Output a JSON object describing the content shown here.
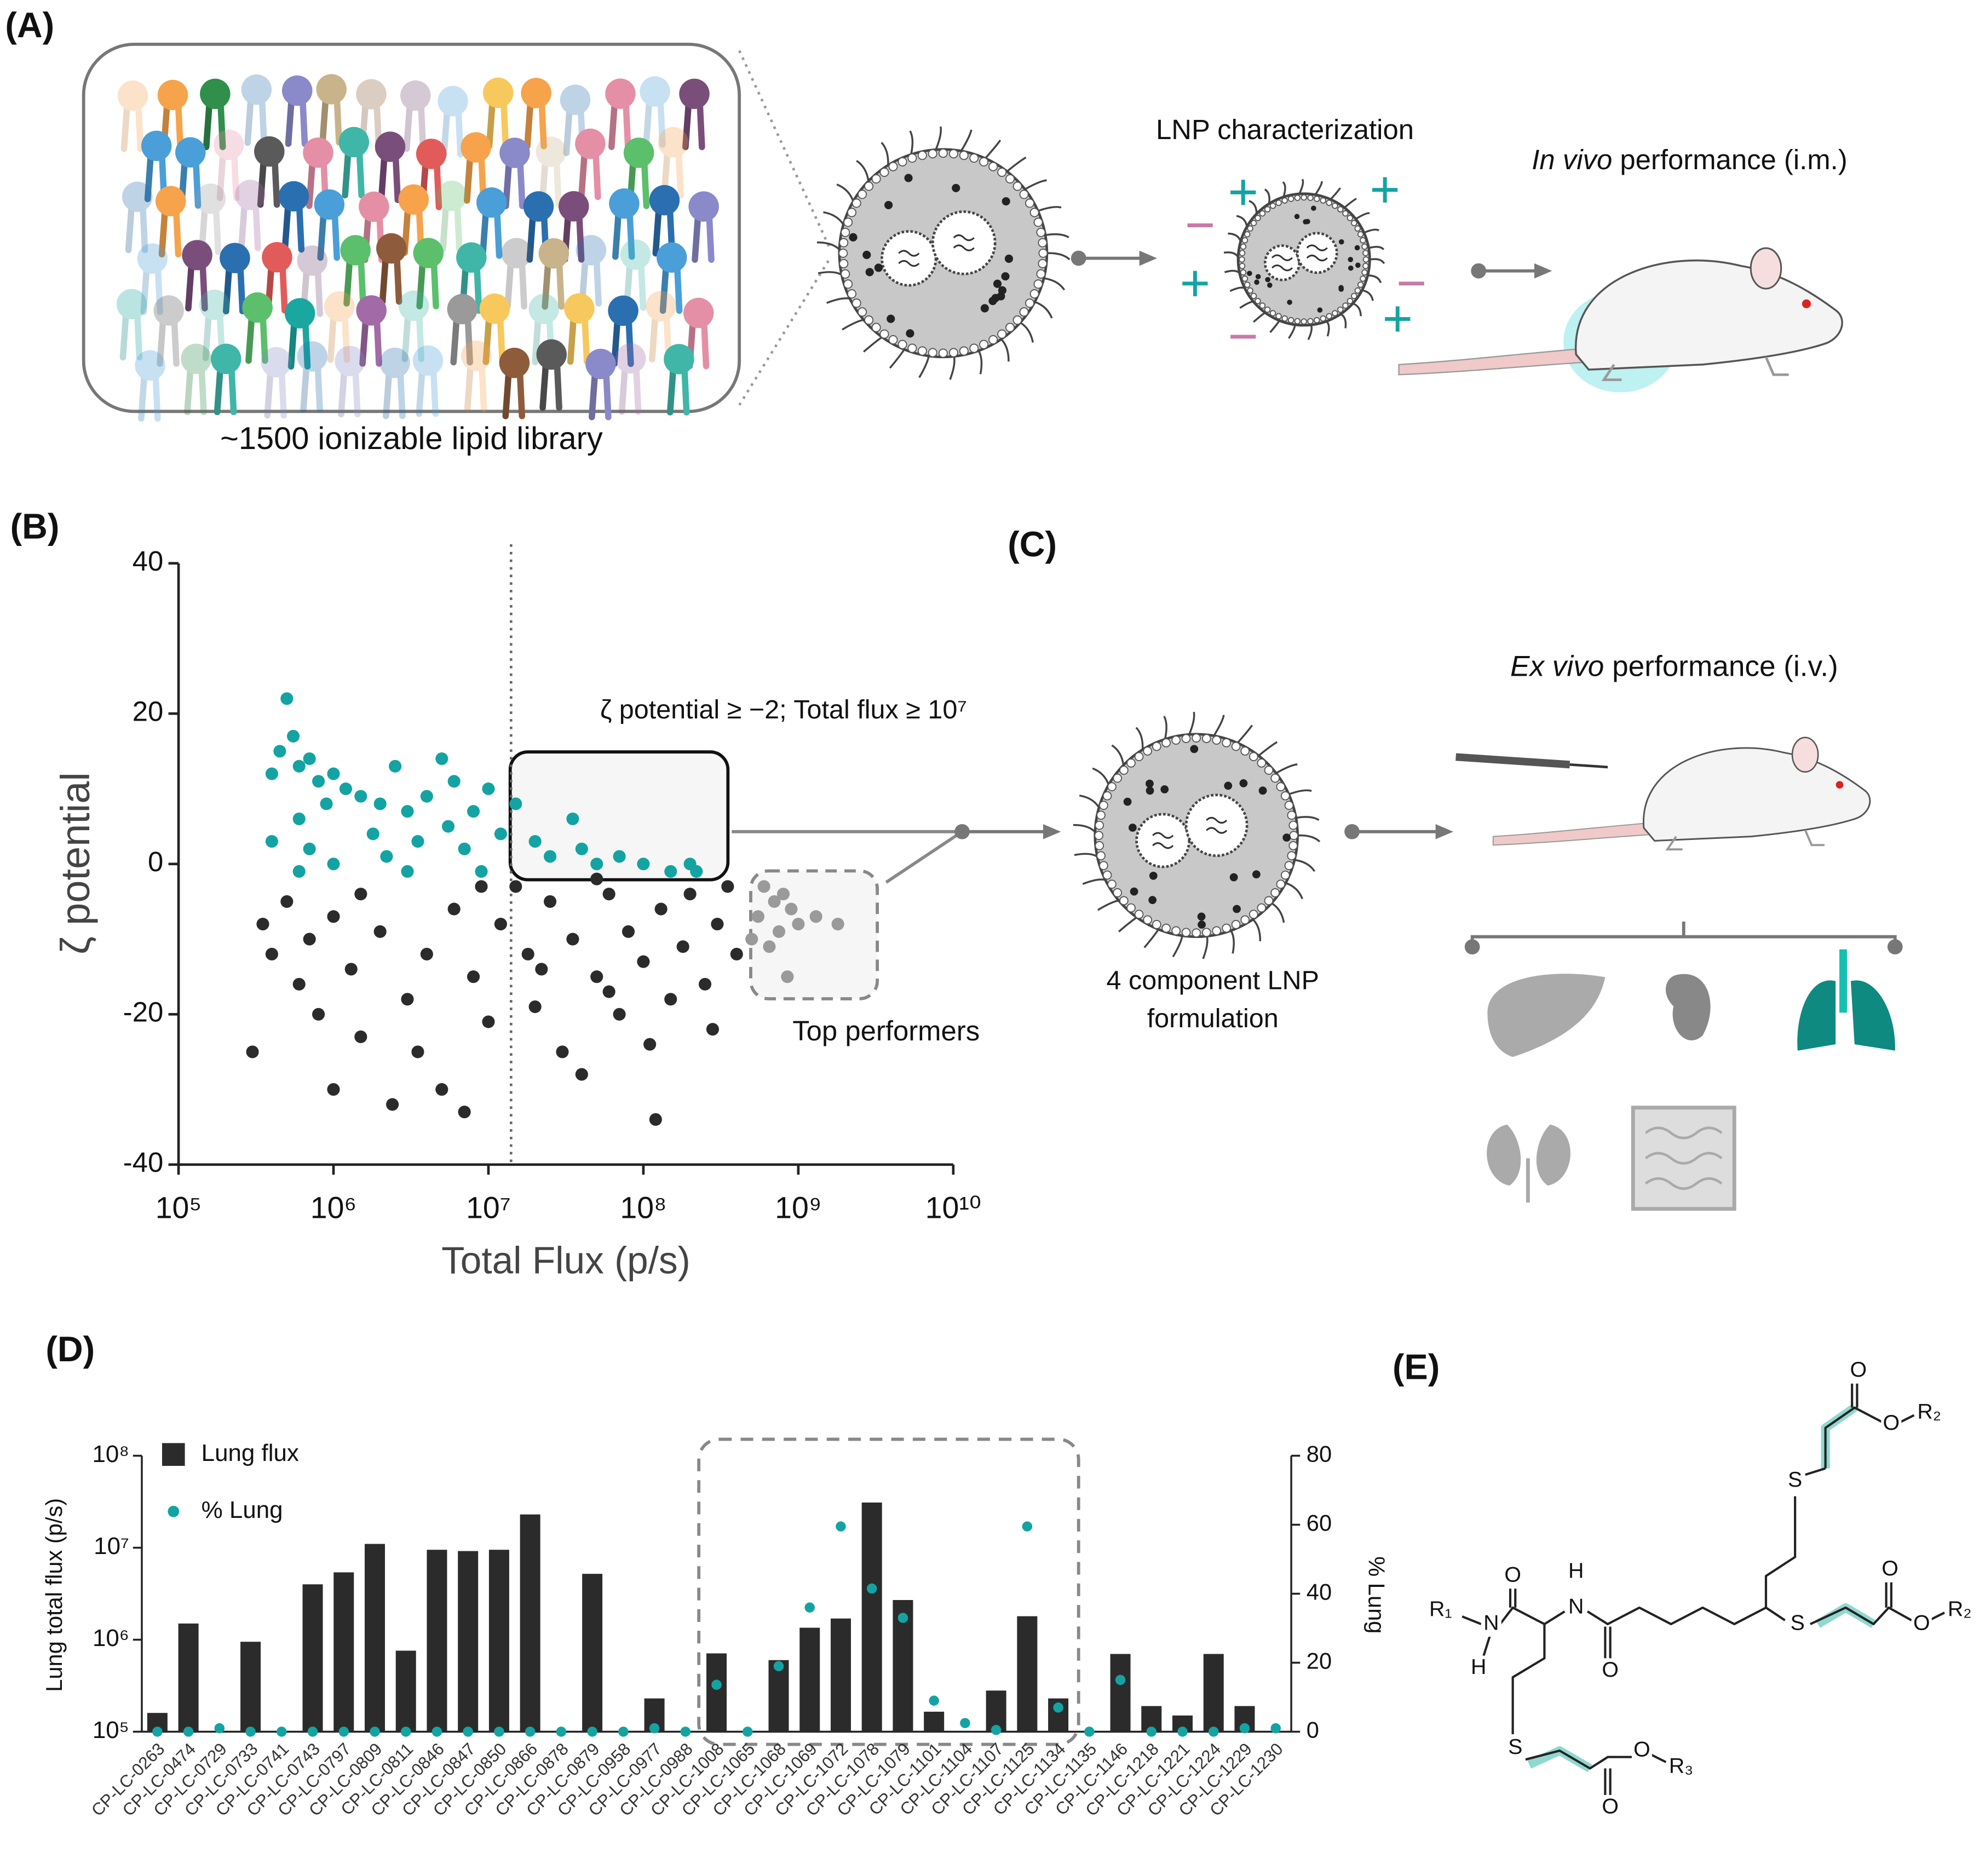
{
  "figure": {
    "panels": [
      "(A)",
      "(B)",
      "(C)",
      "(D)",
      "(E)"
    ],
    "library_label": "~1500 ionizable lipid library",
    "characterization_label": "LNP characterization",
    "in_vivo_label": {
      "italic": "In vivo",
      "rest": " performance (i.m.)"
    },
    "ex_vivo_label": {
      "italic": "Ex vivo",
      "rest": " performance (i.v.)"
    },
    "formulation_label": [
      "4 component LNP",
      "formulation"
    ],
    "structure_labels": {
      "r1": "R₁",
      "r2a": "R₂",
      "r2b": "R₂",
      "r3": "R₃",
      "n": "N",
      "h1": "H",
      "nh": "N",
      "h2": "H",
      "o": "O",
      "s": "S"
    }
  },
  "chart_data": [
    {
      "type": "scatter",
      "xlabel": "Total Flux (p/s)",
      "ylabel": "ζ potential",
      "log_x": true,
      "xlim": [
        100000,
        10000000000
      ],
      "xticks": [
        {
          "value": 100000,
          "label": "10⁵"
        },
        {
          "value": 1000000,
          "label": "10⁶"
        },
        {
          "value": 10000000,
          "label": "10⁷"
        },
        {
          "value": 100000000,
          "label": "10⁸"
        },
        {
          "value": 1000000000,
          "label": "10⁹"
        },
        {
          "value": 10000000000,
          "label": "10¹⁰"
        }
      ],
      "ylim": [
        -40,
        40
      ],
      "yticks": [
        40,
        20,
        0,
        -20,
        -40
      ],
      "threshold_x": 14000000,
      "annotations": [
        "ζ potential ≥ −2; Total flux ≥ 10⁷",
        "Top performers"
      ],
      "series": [
        {
          "color": "#14a3a3",
          "x": [
            500000,
            550000,
            450000,
            400000,
            600000,
            700000,
            800000,
            1000000,
            1200000,
            900000,
            600000,
            400000,
            700000,
            1500000,
            2000000,
            2500000,
            3000000,
            1800000,
            2200000,
            3500000,
            4000000,
            5000000,
            6000000,
            5500000,
            7000000,
            8000000,
            10000000,
            12000000,
            9000000,
            15000000,
            20000000,
            25000000,
            35000000,
            40000000,
            50000000,
            70000000,
            100000000,
            150000000,
            200000000,
            220000000,
            3000000,
            1000000,
            600000
          ],
          "values": [
            22,
            17,
            15,
            12,
            13,
            14,
            11,
            12,
            10,
            8,
            6,
            3,
            2,
            9,
            8,
            13,
            7,
            4,
            1,
            3,
            9,
            14,
            11,
            5,
            2,
            7,
            10,
            4,
            -1,
            8,
            3,
            1,
            6,
            2,
            0,
            1,
            0,
            -1,
            0,
            -1,
            -1,
            0,
            -1
          ]
        },
        {
          "color": "#2b2b2b",
          "x": [
            300000,
            350000,
            400000,
            500000,
            600000,
            700000,
            800000,
            1000000,
            1000000,
            1300000,
            1500000,
            2000000,
            2400000,
            3000000,
            3500000,
            4000000,
            5000000,
            6000000,
            7000000,
            8000000,
            10000000,
            12000000,
            15000000,
            18000000,
            20000000,
            25000000,
            30000000,
            35000000,
            40000000,
            50000000,
            60000000,
            70000000,
            80000000,
            100000000,
            120000000,
            130000000,
            150000000,
            180000000,
            200000000,
            250000000,
            300000000,
            350000000,
            400000000,
            280000000,
            50000000,
            9000000,
            110000000,
            60000000,
            22000000,
            1500000
          ],
          "values": [
            -25,
            -8,
            -12,
            -5,
            -16,
            -10,
            -20,
            -30,
            -7,
            -14,
            -23,
            -9,
            -32,
            -18,
            -25,
            -12,
            -30,
            -6,
            -33,
            -15,
            -21,
            -8,
            -3,
            -12,
            -19,
            -5,
            -25,
            -10,
            -28,
            -15,
            -4,
            -20,
            -9,
            -13,
            -34,
            -6,
            -18,
            -11,
            -4,
            -16,
            -8,
            -3,
            -12,
            -22,
            -2,
            -3,
            -24,
            -17,
            -14,
            -4
          ]
        },
        {
          "color": "#9a9a9a",
          "x": [
            600000000,
            700000000,
            800000000,
            550000000,
            750000000,
            900000000,
            1300000000,
            1800000000,
            650000000,
            850000000,
            1000000000,
            500000000
          ],
          "values": [
            -3,
            -5,
            -4,
            -7,
            -9,
            -6,
            -7,
            -8,
            -11,
            -15,
            -8,
            -10
          ]
        }
      ]
    },
    {
      "type": "bar",
      "ylabel": "Lung total flux (p/s)",
      "y2label": "% Lung",
      "log_y": true,
      "categories": [
        "CP-LC-0263",
        "CP-LC-0474",
        "CP-LC-0729",
        "CP-LC-0733",
        "CP-LC-0741",
        "CP-LC-0743",
        "CP-LC-0797",
        "CP-LC-0809",
        "CP-LC-0811",
        "CP-LC-0846",
        "CP-LC-0847",
        "CP-LC-0850",
        "CP-LC-0866",
        "CP-LC-0878",
        "CP-LC-0879",
        "CP-LC-0958",
        "CP-LC-0977",
        "CP-LC-0988",
        "CP-LC-1008",
        "CP-LC-1065",
        "CP-LC-1068",
        "CP-LC-1069",
        "CP-LC-1072",
        "CP-LC-1078",
        "CP-LC-1079",
        "CP-LC-1101",
        "CP-LC-1104",
        "CP-LC-1107",
        "CP-LC-1125",
        "CP-LC-1134",
        "CP-LC-1135",
        "CP-LC-1146",
        "CP-LC-1218",
        "CP-LC-1221",
        "CP-LC-1224",
        "CP-LC-1229",
        "CP-LC-1230"
      ],
      "ylim": [
        100000,
        100000000
      ],
      "yticks": [
        {
          "value": 100000,
          "label": "10⁵"
        },
        {
          "value": 1000000,
          "label": "10⁶"
        },
        {
          "value": 10000000,
          "label": "10⁷"
        },
        {
          "value": 100000000,
          "label": "10⁸"
        }
      ],
      "y2lim": [
        0,
        80
      ],
      "y2ticks": [
        0,
        20,
        40,
        60,
        80
      ],
      "series": [
        {
          "name": "Lung flux",
          "color": "#2b2b2b",
          "values": [
            160000,
            1500000,
            null,
            950000,
            null,
            4000000,
            5400000,
            11000000,
            760000,
            9500000,
            9200000,
            9500000,
            23000000,
            null,
            5200000,
            null,
            230000,
            null,
            710000,
            null,
            600000,
            1350000,
            1700000,
            31000000,
            2700000,
            165000,
            null,
            280000,
            1800000,
            230000,
            null,
            700000,
            190000,
            150000,
            700000,
            190000,
            null
          ]
        },
        {
          "name": "% Lung",
          "color": "#14a3a3",
          "axis": "y2",
          "values": [
            0,
            0,
            1,
            0,
            0,
            0,
            0,
            0,
            0,
            0,
            0,
            0,
            0,
            0,
            0,
            0,
            1,
            0,
            13.6,
            0,
            19,
            36,
            59.5,
            41.5,
            33,
            9,
            2.5,
            0.5,
            59.5,
            7,
            0,
            15,
            0,
            0,
            0,
            1,
            1
          ]
        }
      ]
    }
  ]
}
